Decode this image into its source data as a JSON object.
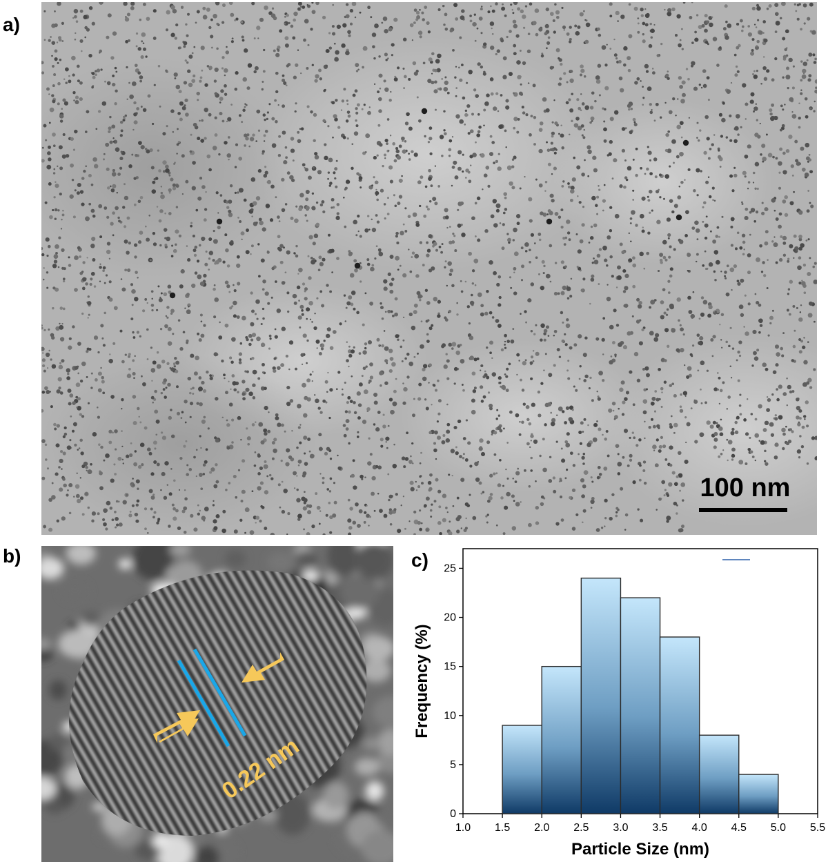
{
  "panels": {
    "a": {
      "label": "a)",
      "scale_bar": "100 nm"
    },
    "b": {
      "label": "b)",
      "lattice_spacing": "0.22 nm"
    },
    "c": {
      "label": "c)"
    }
  },
  "colors": {
    "bar_top": "#c4e6fb",
    "bar_bottom": "#0f3a66",
    "lattice_line": "#1aa7e8",
    "arrow": "#f6c85a"
  },
  "chart_data": {
    "type": "bar",
    "xlabel": "Particle Size (nm)",
    "ylabel": "Frequency (%)",
    "xlim": [
      1.0,
      5.5
    ],
    "ylim": [
      0,
      27
    ],
    "xticks": [
      "1.0",
      "1.5",
      "2.0",
      "2.5",
      "3.0",
      "3.5",
      "4.0",
      "4.5",
      "5.0",
      "5.5"
    ],
    "yticks": [
      "0",
      "5",
      "10",
      "15",
      "20",
      "25"
    ],
    "bins": [
      {
        "from": 1.5,
        "to": 2.0,
        "value": 9
      },
      {
        "from": 2.0,
        "to": 2.5,
        "value": 15
      },
      {
        "from": 2.5,
        "to": 3.0,
        "value": 24
      },
      {
        "from": 3.0,
        "to": 3.5,
        "value": 22
      },
      {
        "from": 3.5,
        "to": 4.0,
        "value": 18
      },
      {
        "from": 4.0,
        "to": 4.5,
        "value": 8
      },
      {
        "from": 4.5,
        "to": 5.0,
        "value": 4
      }
    ],
    "grid": false
  }
}
